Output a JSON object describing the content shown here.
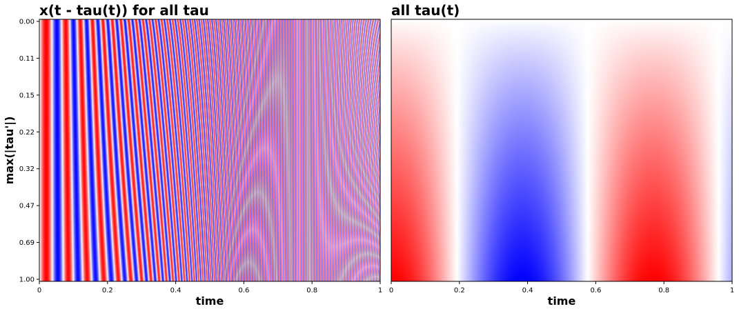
{
  "chart_data": [
    {
      "type": "heatmap",
      "title": "x(t - tau(t)) for all tau",
      "xlabel": "time",
      "ylabel": "max(|tau'|)",
      "xlim": [
        0,
        1
      ],
      "x_ticks": [
        "0",
        "0.2",
        "0.4",
        "0.6",
        "0.8",
        "1"
      ],
      "y_ticks": [
        "0.00",
        "0.11",
        "0.15",
        "0.22",
        "0.32",
        "0.47",
        "0.69",
        "1.00"
      ],
      "colormap": "bwr",
      "colors": {
        "positive": "#ff0000",
        "zero": "#ffffff",
        "negative": "#0000ff"
      }
    },
    {
      "type": "heatmap",
      "title": "all tau(t)",
      "xlabel": "time",
      "ylabel": "",
      "xlim": [
        0,
        1
      ],
      "x_ticks": [
        "0",
        "0.2",
        "0.4",
        "0.6",
        "0.8",
        "1"
      ],
      "y_ticks": [],
      "colormap": "bwr",
      "colors": {
        "positive": "#ff0000",
        "zero": "#ffffff",
        "negative": "#0000ff"
      }
    }
  ]
}
